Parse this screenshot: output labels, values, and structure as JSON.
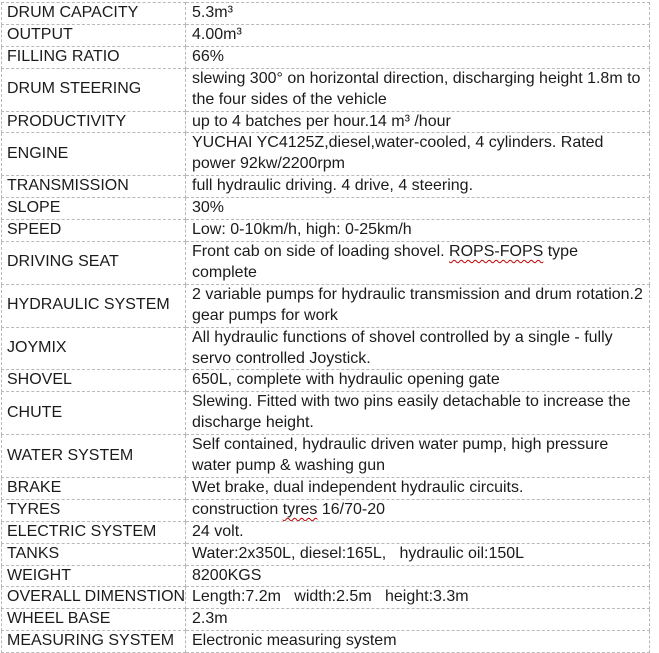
{
  "colors": {
    "border": "#b9b9b9",
    "text": "#1b1b1b",
    "misspell": "#c00000",
    "background": "#ffffff"
  },
  "table": {
    "rows": [
      {
        "label": "DRUM CAPACITY",
        "value": [
          {
            "t": "5.3m³"
          }
        ]
      },
      {
        "label": "OUTPUT",
        "value": [
          {
            "t": "4.00m³"
          }
        ]
      },
      {
        "label": "FILLING RATIO",
        "value": [
          {
            "t": "66%"
          }
        ]
      },
      {
        "label": "DRUM STEERING",
        "value": [
          {
            "t": "slewing 300° on horizontal direction, discharging height 1.8m to the four sides of the vehicle"
          }
        ]
      },
      {
        "label": "PRODUCTIVITY",
        "value": [
          {
            "t": "up to 4 batches per hour.14 m³ /hour"
          }
        ]
      },
      {
        "label": "ENGINE",
        "value": [
          {
            "t": "YUCHAI YC4125Z,diesel,water-cooled, 4 cylinders. Rated power 92kw/2200rpm"
          }
        ]
      },
      {
        "label": "TRANSMISSION",
        "value": [
          {
            "t": "full hydraulic driving. 4 drive, 4 steering."
          }
        ]
      },
      {
        "label": "SLOPE",
        "value": [
          {
            "t": "30%"
          }
        ]
      },
      {
        "label": "SPEED",
        "value": [
          {
            "t": "Low: 0-10km/h, high: 0-25km/h"
          }
        ]
      },
      {
        "label": "DRIVING SEAT",
        "value": [
          {
            "t": "Front cab on side of loading shovel. "
          },
          {
            "t": "ROPS-FOPS",
            "misspelled": true
          },
          {
            "t": " type complete"
          }
        ]
      },
      {
        "label": "HYDRAULIC SYSTEM",
        "value": [
          {
            "t": "2 variable pumps for hydraulic transmission and drum rotation.2 gear pumps for work"
          }
        ]
      },
      {
        "label": "JOYMIX",
        "value": [
          {
            "t": "All hydraulic functions of shovel controlled by a single - fully servo controlled Joystick."
          }
        ]
      },
      {
        "label": "SHOVEL",
        "value": [
          {
            "t": "650L, complete with hydraulic opening gate"
          }
        ]
      },
      {
        "label": "CHUTE",
        "value": [
          {
            "t": "Slewing. Fitted with two pins easily detachable to increase the discharge height."
          }
        ]
      },
      {
        "label": "WATER SYSTEM",
        "value": [
          {
            "t": "Self contained, hydraulic driven water pump, high pressure water pump & washing gun"
          }
        ]
      },
      {
        "label": "BRAKE",
        "value": [
          {
            "t": "Wet brake, dual independent hydraulic circuits."
          }
        ]
      },
      {
        "label": "TYRES",
        "value": [
          {
            "t": "construction "
          },
          {
            "t": "tyres",
            "misspelled": true
          },
          {
            "t": " 16/70-20"
          }
        ]
      },
      {
        "label": "ELECTRIC SYSTEM",
        "value": [
          {
            "t": "24 volt."
          }
        ]
      },
      {
        "label": "TANKS",
        "value": [
          {
            "t": "Water:2x350L, diesel:165L,   hydraulic oil:150L"
          }
        ]
      },
      {
        "label": "WEIGHT",
        "value": [
          {
            "t": "8200KGS"
          }
        ]
      },
      {
        "label": "OVERALL DIMENSTION",
        "value": [
          {
            "t": "Length:7.2m   width:2.5m   height:3.3m"
          }
        ]
      },
      {
        "label": "WHEEL BASE",
        "value": [
          {
            "t": "2.3m"
          }
        ]
      },
      {
        "label": "MEASURING SYSTEM",
        "value": [
          {
            "t": "Electronic measuring system"
          }
        ]
      }
    ]
  }
}
